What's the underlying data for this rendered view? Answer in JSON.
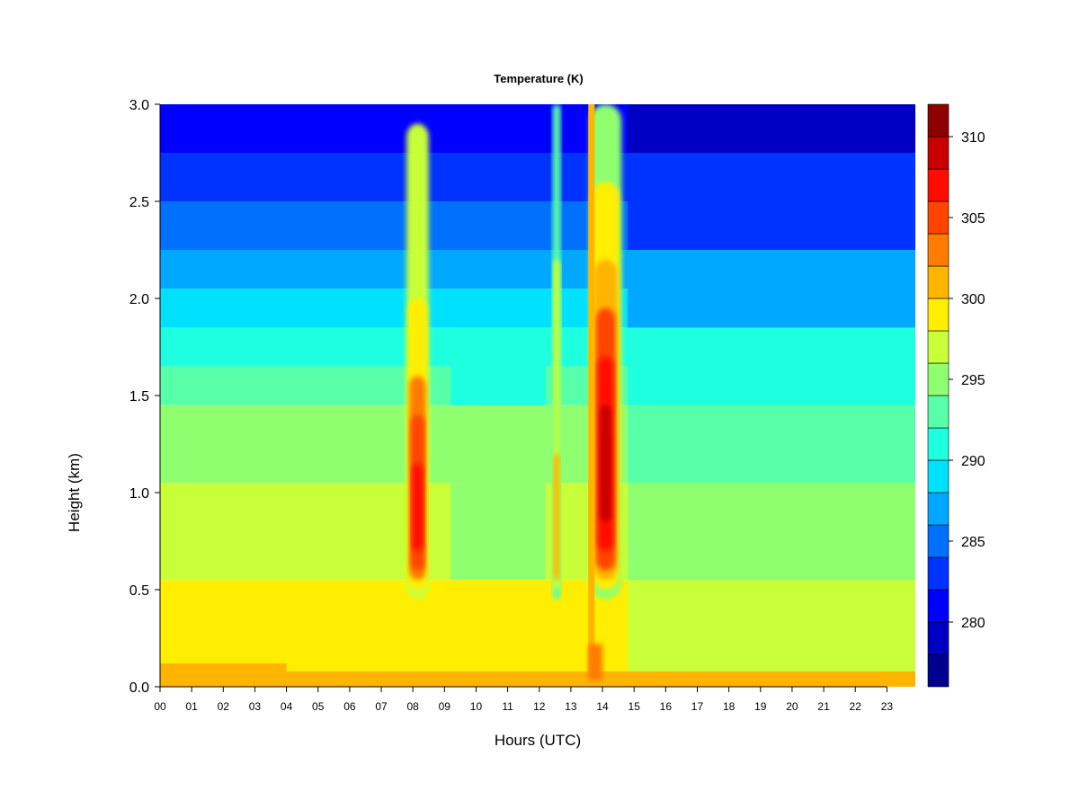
{
  "chart_data": {
    "type": "heatmap",
    "title": "Temperature (K)",
    "xlabel": "Hours (UTC)",
    "ylabel": "Height (km)",
    "xlim": [
      0,
      23.9
    ],
    "ylim": [
      0.0,
      3.0
    ],
    "x_ticks": [
      "00",
      "01",
      "02",
      "03",
      "04",
      "05",
      "06",
      "07",
      "08",
      "09",
      "10",
      "11",
      "12",
      "13",
      "14",
      "15",
      "16",
      "17",
      "18",
      "19",
      "20",
      "21",
      "22",
      "23"
    ],
    "y_ticks": [
      "0.0",
      "0.5",
      "1.0",
      "1.5",
      "2.0",
      "2.5",
      "3.0"
    ],
    "colorbar": {
      "levels": [
        276,
        278,
        280,
        282,
        284,
        286,
        288,
        290,
        292,
        294,
        296,
        298,
        300,
        302,
        304,
        306,
        308,
        310,
        312
      ],
      "colors": [
        "#00008f",
        "#0000c4",
        "#0000ff",
        "#0033ff",
        "#0070ff",
        "#00a8ff",
        "#00e0ff",
        "#1effe0",
        "#57ffa8",
        "#8fff70",
        "#c8ff38",
        "#ffee00",
        "#ffb400",
        "#ff7c00",
        "#ff4400",
        "#ff0c00",
        "#c80000",
        "#8f0000"
      ],
      "tick_labels": [
        "280",
        "285",
        "290",
        "295",
        "300",
        "305",
        "310"
      ]
    },
    "features": [
      {
        "label": "warm plume",
        "hour_center": 8.2,
        "height_range_km": [
          0.45,
          3.0
        ],
        "max_temp_K": 307
      },
      {
        "label": "warm plume",
        "hour_center": 12.6,
        "height_range_km": [
          0.45,
          3.0
        ],
        "max_temp_K": 300
      },
      {
        "label": "warm plume",
        "hour_center": 14.1,
        "height_range_km": [
          0.45,
          3.0
        ],
        "max_temp_K": 309
      }
    ]
  }
}
